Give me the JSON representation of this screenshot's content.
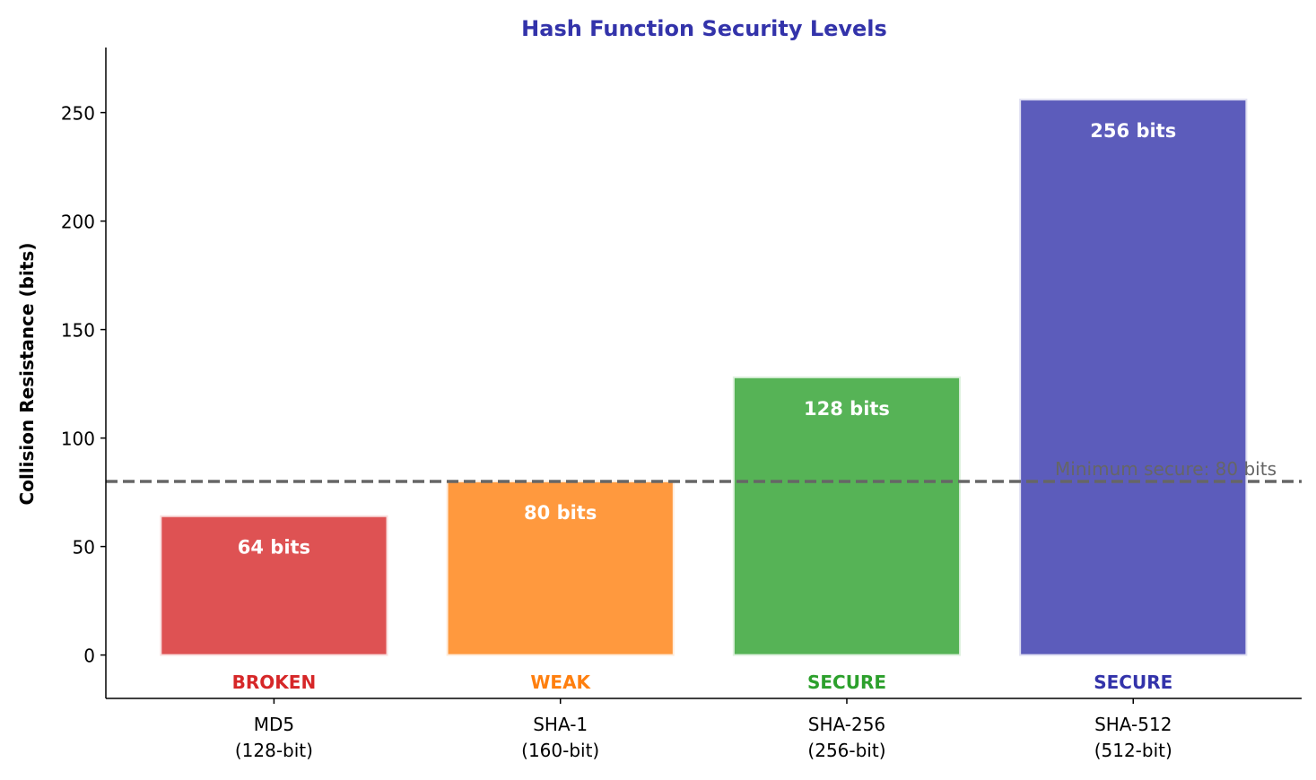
{
  "chart_data": {
    "type": "bar",
    "title": "Hash Function Security Levels",
    "title_color": "#3333aa",
    "xlabel": "",
    "ylabel": "Collision Resistance (bits)",
    "ylim": [
      -20,
      280
    ],
    "yticks": [
      0,
      50,
      100,
      150,
      200,
      250
    ],
    "grid": false,
    "categories": [
      "MD5\n(128-bit)",
      "SHA-1\n(160-bit)",
      "SHA-256\n(256-bit)",
      "SHA-512\n(512-bit)"
    ],
    "values": [
      64,
      80,
      128,
      256
    ],
    "value_labels": [
      "64 bits",
      "80 bits",
      "128 bits",
      "256 bits"
    ],
    "status_labels": [
      "BROKEN",
      "WEAK",
      "SECURE",
      "SECURE"
    ],
    "colors": [
      "#d62728",
      "#ff7f0e",
      "#2ca02c",
      "#3333aa"
    ],
    "bar_alpha": 0.8,
    "reference_line": {
      "value": 80,
      "label": "Minimum secure: 80 bits",
      "style": "dashed",
      "color": "#666666"
    }
  }
}
